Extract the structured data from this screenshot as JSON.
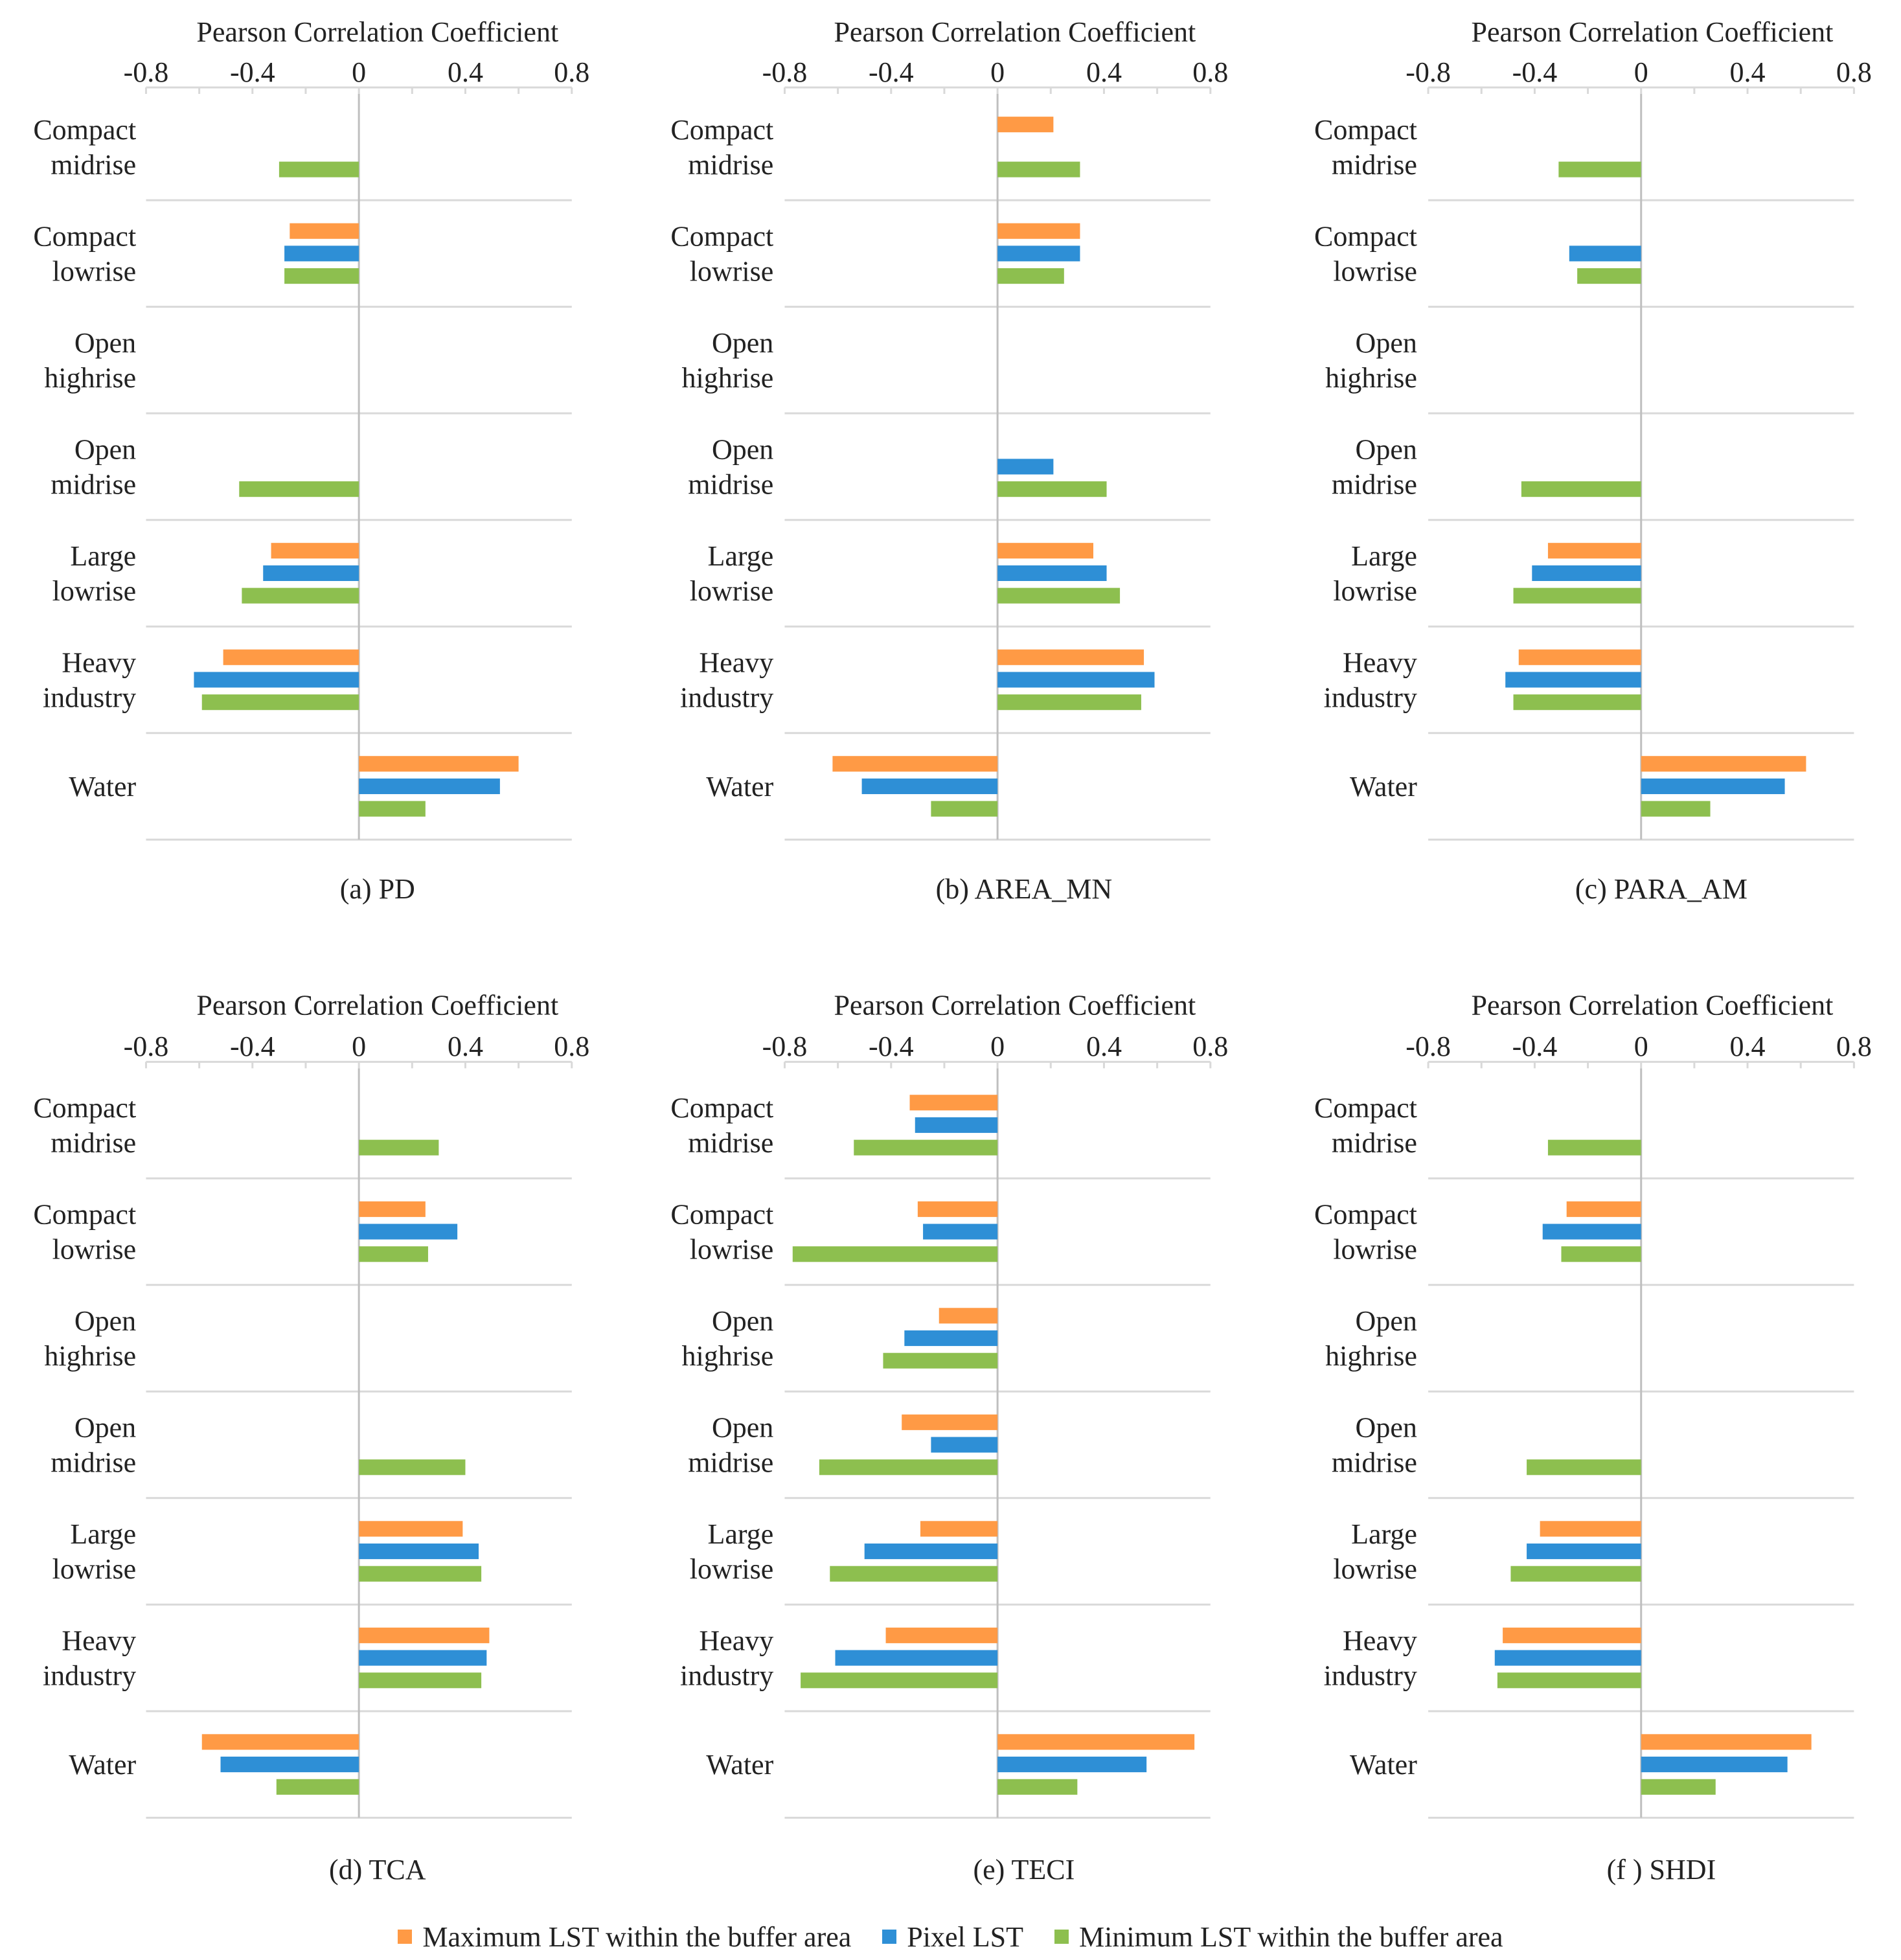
{
  "colors": {
    "max_lst": "#FF9A45",
    "pixel_lst": "#2E8FD6",
    "min_lst": "#8DBF4F",
    "grid": "#D9D9D9",
    "axis_zero": "#BFBFBF"
  },
  "legend": [
    {
      "label": "Maximum LST within the buffer area",
      "color": "#FF9A45"
    },
    {
      "label": "Pixel LST",
      "color": "#2E8FD6"
    },
    {
      "label": "Minimum LST within the buffer area",
      "color": "#8DBF4F"
    }
  ],
  "chart_data": [
    {
      "type": "bar",
      "orientation": "horizontal",
      "title": "(a) PD",
      "xlabel": "Pearson Correlation Coefficient",
      "xlim": [
        -0.8,
        0.8
      ],
      "xticks": [
        "-0.8",
        "-0.4",
        "0",
        "0.4",
        "0.8"
      ],
      "categories": [
        "Compact\nmidrise",
        "Compact\nlowrise",
        "Open\nhighrise",
        "Open\nmidrise",
        "Large\nlowrise",
        "Heavy\nindustry",
        "Water"
      ],
      "series": [
        {
          "name": "Maximum LST within the buffer area",
          "values": [
            null,
            -0.26,
            null,
            null,
            -0.33,
            -0.51,
            0.6
          ]
        },
        {
          "name": "Pixel LST",
          "values": [
            null,
            -0.28,
            null,
            null,
            -0.36,
            -0.62,
            0.53
          ]
        },
        {
          "name": "Minimum LST within the buffer area",
          "values": [
            -0.3,
            -0.28,
            null,
            -0.45,
            -0.44,
            -0.59,
            0.25
          ]
        }
      ]
    },
    {
      "type": "bar",
      "orientation": "horizontal",
      "title": "(b) AREA_MN",
      "xlabel": "Pearson Correlation Coefficient",
      "xlim": [
        -0.8,
        0.8
      ],
      "xticks": [
        "-0.8",
        "-0.4",
        "0",
        "0.4",
        "0.8"
      ],
      "categories": [
        "Compact\nmidrise",
        "Compact\nlowrise",
        "Open\nhighrise",
        "Open\nmidrise",
        "Large\nlowrise",
        "Heavy\nindustry",
        "Water"
      ],
      "series": [
        {
          "name": "Maximum LST within the buffer area",
          "values": [
            0.21,
            0.31,
            null,
            null,
            0.36,
            0.55,
            -0.62
          ]
        },
        {
          "name": "Pixel LST",
          "values": [
            null,
            0.31,
            null,
            0.21,
            0.41,
            0.59,
            -0.51
          ]
        },
        {
          "name": "Minimum LST within the buffer area",
          "values": [
            0.31,
            0.25,
            null,
            0.41,
            0.46,
            0.54,
            -0.25
          ]
        }
      ]
    },
    {
      "type": "bar",
      "orientation": "horizontal",
      "title": "(c) PARA_AM",
      "xlabel": "Pearson Correlation Coefficient",
      "xlim": [
        -0.8,
        0.8
      ],
      "xticks": [
        "-0.8",
        "-0.4",
        "0",
        "0.4",
        "0.8"
      ],
      "categories": [
        "Compact\nmidrise",
        "Compact\nlowrise",
        "Open\nhighrise",
        "Open\nmidrise",
        "Large\nlowrise",
        "Heavy\nindustry",
        "Water"
      ],
      "series": [
        {
          "name": "Maximum LST within the buffer area",
          "values": [
            null,
            null,
            null,
            null,
            -0.35,
            -0.46,
            0.62
          ]
        },
        {
          "name": "Pixel LST",
          "values": [
            null,
            -0.27,
            null,
            null,
            -0.41,
            -0.51,
            0.54
          ]
        },
        {
          "name": "Minimum LST within the buffer area",
          "values": [
            -0.31,
            -0.24,
            null,
            -0.45,
            -0.48,
            -0.48,
            0.26
          ]
        }
      ]
    },
    {
      "type": "bar",
      "orientation": "horizontal",
      "title": "(d) TCA",
      "xlabel": "Pearson Correlation Coefficient",
      "xlim": [
        -0.8,
        0.8
      ],
      "xticks": [
        "-0.8",
        "-0.4",
        "0",
        "0.4",
        "0.8"
      ],
      "categories": [
        "Compact\nmidrise",
        "Compact\nlowrise",
        "Open\nhighrise",
        "Open\nmidrise",
        "Large\nlowrise",
        "Heavy\nindustry",
        "Water"
      ],
      "series": [
        {
          "name": "Maximum LST within the buffer area",
          "values": [
            null,
            0.25,
            null,
            null,
            0.39,
            0.49,
            -0.59
          ]
        },
        {
          "name": "Pixel LST",
          "values": [
            null,
            0.37,
            null,
            null,
            0.45,
            0.48,
            -0.52
          ]
        },
        {
          "name": "Minimum LST within the buffer area",
          "values": [
            0.3,
            0.26,
            null,
            0.4,
            0.46,
            0.46,
            -0.31
          ]
        }
      ]
    },
    {
      "type": "bar",
      "orientation": "horizontal",
      "title": "(e) TECI",
      "xlabel": "Pearson Correlation Coefficient",
      "xlim": [
        -0.8,
        0.8
      ],
      "xticks": [
        "-0.8",
        "-0.4",
        "0",
        "0.4",
        "0.8"
      ],
      "categories": [
        "Compact\nmidrise",
        "Compact\nlowrise",
        "Open\nhighrise",
        "Open\nmidrise",
        "Large\nlowrise",
        "Heavy\nindustry",
        "Water"
      ],
      "series": [
        {
          "name": "Maximum LST within the buffer area",
          "values": [
            -0.33,
            -0.3,
            -0.22,
            -0.36,
            -0.29,
            -0.42,
            0.74
          ]
        },
        {
          "name": "Pixel LST",
          "values": [
            -0.31,
            -0.28,
            -0.35,
            -0.25,
            -0.5,
            -0.61,
            0.56
          ]
        },
        {
          "name": "Minimum LST within the buffer area",
          "values": [
            -0.54,
            -0.77,
            -0.43,
            -0.67,
            -0.63,
            -0.74,
            0.3
          ]
        }
      ]
    },
    {
      "type": "bar",
      "orientation": "horizontal",
      "title": "(f ) SHDI",
      "xlabel": "Pearson Correlation Coefficient",
      "xlim": [
        -0.8,
        0.8
      ],
      "xticks": [
        "-0.8",
        "-0.4",
        "0",
        "0.4",
        "0.8"
      ],
      "categories": [
        "Compact\nmidrise",
        "Compact\nlowrise",
        "Open\nhighrise",
        "Open\nmidrise",
        "Large\nlowrise",
        "Heavy\nindustry",
        "Water"
      ],
      "series": [
        {
          "name": "Maximum LST within the buffer area",
          "values": [
            null,
            -0.28,
            null,
            null,
            -0.38,
            -0.52,
            0.64
          ]
        },
        {
          "name": "Pixel LST",
          "values": [
            null,
            -0.37,
            null,
            null,
            -0.43,
            -0.55,
            0.55
          ]
        },
        {
          "name": "Minimum LST within the buffer area",
          "values": [
            -0.35,
            -0.3,
            null,
            -0.43,
            -0.49,
            -0.54,
            0.28
          ]
        }
      ]
    }
  ]
}
